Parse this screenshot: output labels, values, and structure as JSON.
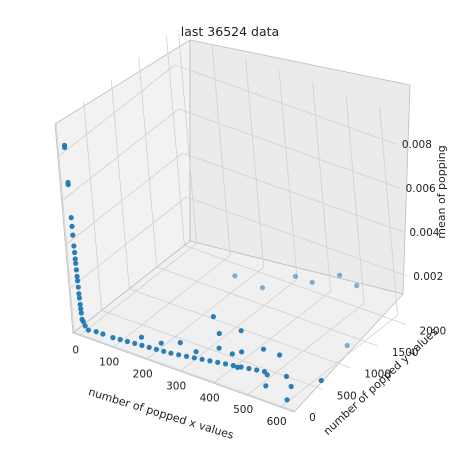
{
  "chart_data": {
    "type": "scatter",
    "title": "last 36524 data",
    "xlabel": "number of popped x values",
    "ylabel": "number of popped y values",
    "zlabel": "mean of popping",
    "xlim": [
      -20,
      640
    ],
    "ylim": [
      -20,
      2100
    ],
    "zlim": [
      0,
      0.0095
    ],
    "x_ticks": [
      "0",
      "100",
      "200",
      "300",
      "400",
      "500",
      "600"
    ],
    "y_ticks": [
      "0",
      "500",
      "1000",
      "1500",
      "2000"
    ],
    "z_ticks": [
      "0.002",
      "0.004",
      "0.006",
      "0.008"
    ],
    "grid": true,
    "color": "#1f77b4",
    "points": [
      [
        0,
        0,
        0.0086
      ],
      [
        0,
        0,
        0.0085
      ],
      [
        0,
        5,
        0.0069
      ],
      [
        0,
        5,
        0.0068
      ],
      [
        0,
        8,
        0.0053
      ],
      [
        0,
        8,
        0.0049
      ],
      [
        0,
        10,
        0.0045
      ],
      [
        0,
        12,
        0.004
      ],
      [
        0,
        14,
        0.0037
      ],
      [
        0,
        16,
        0.0034
      ],
      [
        0,
        18,
        0.0032
      ],
      [
        0,
        20,
        0.0029
      ],
      [
        0,
        22,
        0.0026
      ],
      [
        0,
        24,
        0.0024
      ],
      [
        0,
        26,
        0.0021
      ],
      [
        0,
        28,
        0.0018
      ],
      [
        0,
        30,
        0.0016
      ],
      [
        0,
        33,
        0.0013
      ],
      [
        0,
        36,
        0.0011
      ],
      [
        0,
        40,
        0.0009
      ],
      [
        0,
        45,
        0.0006
      ],
      [
        2,
        50,
        0.0005
      ],
      [
        5,
        60,
        0.0003
      ],
      [
        10,
        80,
        0.0001
      ],
      [
        30,
        100,
        0.0001
      ],
      [
        50,
        100,
        0.0001
      ],
      [
        80,
        100,
        0.0001
      ],
      [
        100,
        110,
        0.0001
      ],
      [
        120,
        120,
        0.0001
      ],
      [
        140,
        130,
        0.0001
      ],
      [
        160,
        140,
        0.0001
      ],
      [
        180,
        150,
        0.0001
      ],
      [
        200,
        160,
        0.0001
      ],
      [
        220,
        170,
        0.0001
      ],
      [
        240,
        180,
        0.0001
      ],
      [
        260,
        200,
        0.0001
      ],
      [
        280,
        220,
        0.0001
      ],
      [
        300,
        240,
        0.0001
      ],
      [
        320,
        260,
        0.0001
      ],
      [
        340,
        280,
        0.0001
      ],
      [
        360,
        300,
        0.0001
      ],
      [
        380,
        320,
        0.0001
      ],
      [
        400,
        340,
        0.0001
      ],
      [
        420,
        360,
        0.0001
      ],
      [
        440,
        380,
        0.0001
      ],
      [
        460,
        400,
        0.0001
      ],
      [
        480,
        420,
        0.0001
      ],
      [
        150,
        200,
        0.0003
      ],
      [
        200,
        250,
        0.0002
      ],
      [
        250,
        300,
        0.0004
      ],
      [
        300,
        280,
        0.0003
      ],
      [
        350,
        400,
        0.0005
      ],
      [
        380,
        450,
        0.0003
      ],
      [
        400,
        500,
        0.0004
      ],
      [
        420,
        300,
        0.0002
      ],
      [
        450,
        600,
        0.0006
      ],
      [
        480,
        700,
        0.0003
      ],
      [
        500,
        350,
        0.0002
      ],
      [
        550,
        400,
        0.0003
      ],
      [
        520,
        200,
        0.0001
      ],
      [
        580,
        300,
        0.0002
      ],
      [
        600,
        100,
        0.0001
      ],
      [
        300,
        1500,
        0.0008
      ],
      [
        200,
        1600,
        0.0006
      ],
      [
        350,
        1800,
        0.001
      ],
      [
        450,
        2000,
        0.0012
      ],
      [
        500,
        2000,
        0.001
      ],
      [
        400,
        1800,
        0.001
      ],
      [
        250,
        900,
        0.0004
      ],
      [
        300,
        700,
        0.0003
      ],
      [
        350,
        800,
        0.0005
      ],
      [
        600,
        1200,
        0.0004
      ],
      [
        620,
        600,
        0.0001
      ]
    ]
  }
}
